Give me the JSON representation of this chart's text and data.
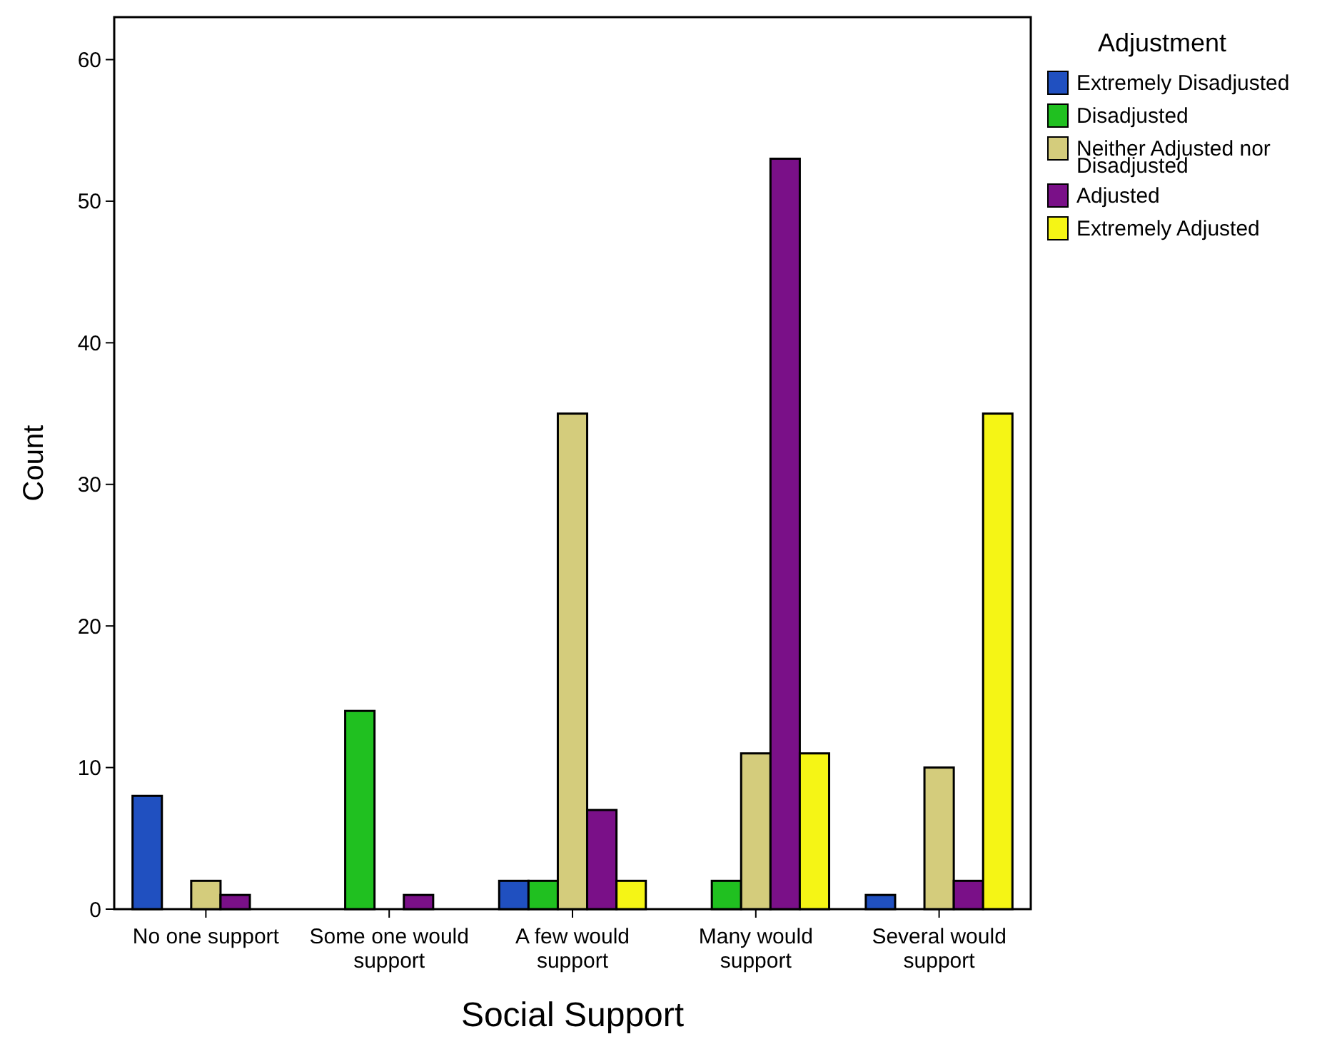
{
  "chart_data": {
    "type": "bar",
    "xlabel": "Social Support",
    "ylabel": "Count",
    "legend_title": "Adjustment",
    "legend": "top right",
    "categories": [
      "No one support",
      "Some one would support",
      "A few would support",
      "Many would support",
      "Several would support"
    ],
    "ylim": [
      0,
      63
    ],
    "yticks": [
      0,
      10,
      20,
      30,
      40,
      50,
      60
    ],
    "series": [
      {
        "name": "Extremely Disadjusted",
        "color": "#2050c0",
        "values": [
          8,
          0,
          2,
          0,
          1
        ]
      },
      {
        "name": "Disadjusted",
        "color": "#20c020",
        "values": [
          0,
          14,
          2,
          2,
          0
        ]
      },
      {
        "name": "Neither Adjusted nor Disadjusted",
        "color": "#d4cc7c",
        "values": [
          2,
          0,
          35,
          11,
          10
        ]
      },
      {
        "name": "Adjusted",
        "color": "#7a1088",
        "values": [
          1,
          1,
          7,
          53,
          2
        ]
      },
      {
        "name": "Extremely Adjusted",
        "color": "#f5f515",
        "values": [
          0,
          0,
          2,
          11,
          35
        ]
      }
    ]
  }
}
